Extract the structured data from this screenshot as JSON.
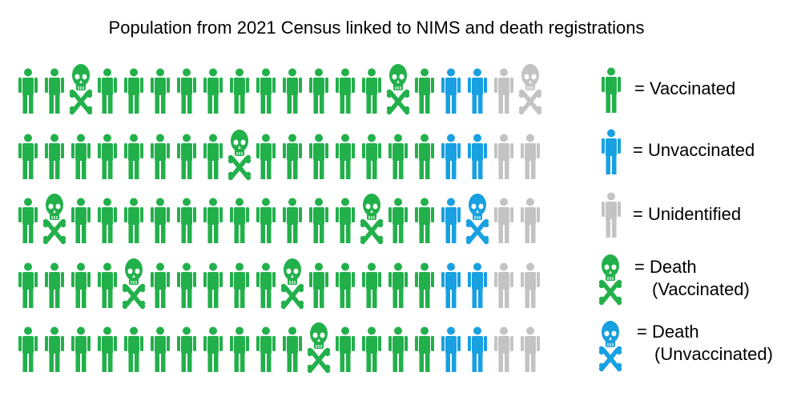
{
  "title": "Population from 2021 Census linked to NIMS and death registrations",
  "colors": {
    "vaccinated": "#22b04b",
    "unvaccinated": "#18a0e0",
    "unidentified": "#c3c3c3"
  },
  "grid": {
    "rows": [
      [
        "person-vaccinated",
        "person-vaccinated",
        "death-vaccinated",
        "person-vaccinated",
        "person-vaccinated",
        "person-vaccinated",
        "person-vaccinated",
        "person-vaccinated",
        "person-vaccinated",
        "person-vaccinated",
        "person-vaccinated",
        "person-vaccinated",
        "person-vaccinated",
        "person-vaccinated",
        "death-vaccinated",
        "person-vaccinated",
        "person-unvaccinated",
        "person-unvaccinated",
        "person-unidentified",
        "death-unidentified"
      ],
      [
        "person-vaccinated",
        "person-vaccinated",
        "person-vaccinated",
        "person-vaccinated",
        "person-vaccinated",
        "person-vaccinated",
        "person-vaccinated",
        "person-vaccinated",
        "death-vaccinated",
        "person-vaccinated",
        "person-vaccinated",
        "person-vaccinated",
        "person-vaccinated",
        "person-vaccinated",
        "person-vaccinated",
        "person-vaccinated",
        "person-unvaccinated",
        "person-unvaccinated",
        "person-unidentified",
        "person-unidentified"
      ],
      [
        "person-vaccinated",
        "death-vaccinated",
        "person-vaccinated",
        "person-vaccinated",
        "person-vaccinated",
        "person-vaccinated",
        "person-vaccinated",
        "person-vaccinated",
        "person-vaccinated",
        "person-vaccinated",
        "person-vaccinated",
        "person-vaccinated",
        "person-vaccinated",
        "death-vaccinated",
        "person-vaccinated",
        "person-vaccinated",
        "person-unvaccinated",
        "death-unvaccinated",
        "person-unidentified",
        "person-unidentified"
      ],
      [
        "person-vaccinated",
        "person-vaccinated",
        "person-vaccinated",
        "person-vaccinated",
        "death-vaccinated",
        "person-vaccinated",
        "person-vaccinated",
        "person-vaccinated",
        "person-vaccinated",
        "person-vaccinated",
        "death-vaccinated",
        "person-vaccinated",
        "person-vaccinated",
        "person-vaccinated",
        "person-vaccinated",
        "person-vaccinated",
        "person-unvaccinated",
        "person-unvaccinated",
        "person-unidentified",
        "person-unidentified"
      ],
      [
        "person-vaccinated",
        "person-vaccinated",
        "person-vaccinated",
        "person-vaccinated",
        "person-vaccinated",
        "person-vaccinated",
        "person-vaccinated",
        "person-vaccinated",
        "person-vaccinated",
        "person-vaccinated",
        "person-vaccinated",
        "death-vaccinated",
        "person-vaccinated",
        "person-vaccinated",
        "person-vaccinated",
        "person-vaccinated",
        "person-unvaccinated",
        "person-unvaccinated",
        "person-unidentified",
        "person-unidentified"
      ]
    ]
  },
  "legend": {
    "items": [
      {
        "icon": "person-vaccinated",
        "label": "= Vaccinated"
      },
      {
        "icon": "person-unvaccinated",
        "label": "= Unvaccinated"
      },
      {
        "icon": "person-unidentified",
        "label": "= Unidentified"
      },
      {
        "icon": "death-vaccinated",
        "label": "= Death",
        "label2": "(Vaccinated)"
      },
      {
        "icon": "death-unvaccinated",
        "label": "= Death",
        "label2": "(Unvaccinated)"
      }
    ]
  }
}
